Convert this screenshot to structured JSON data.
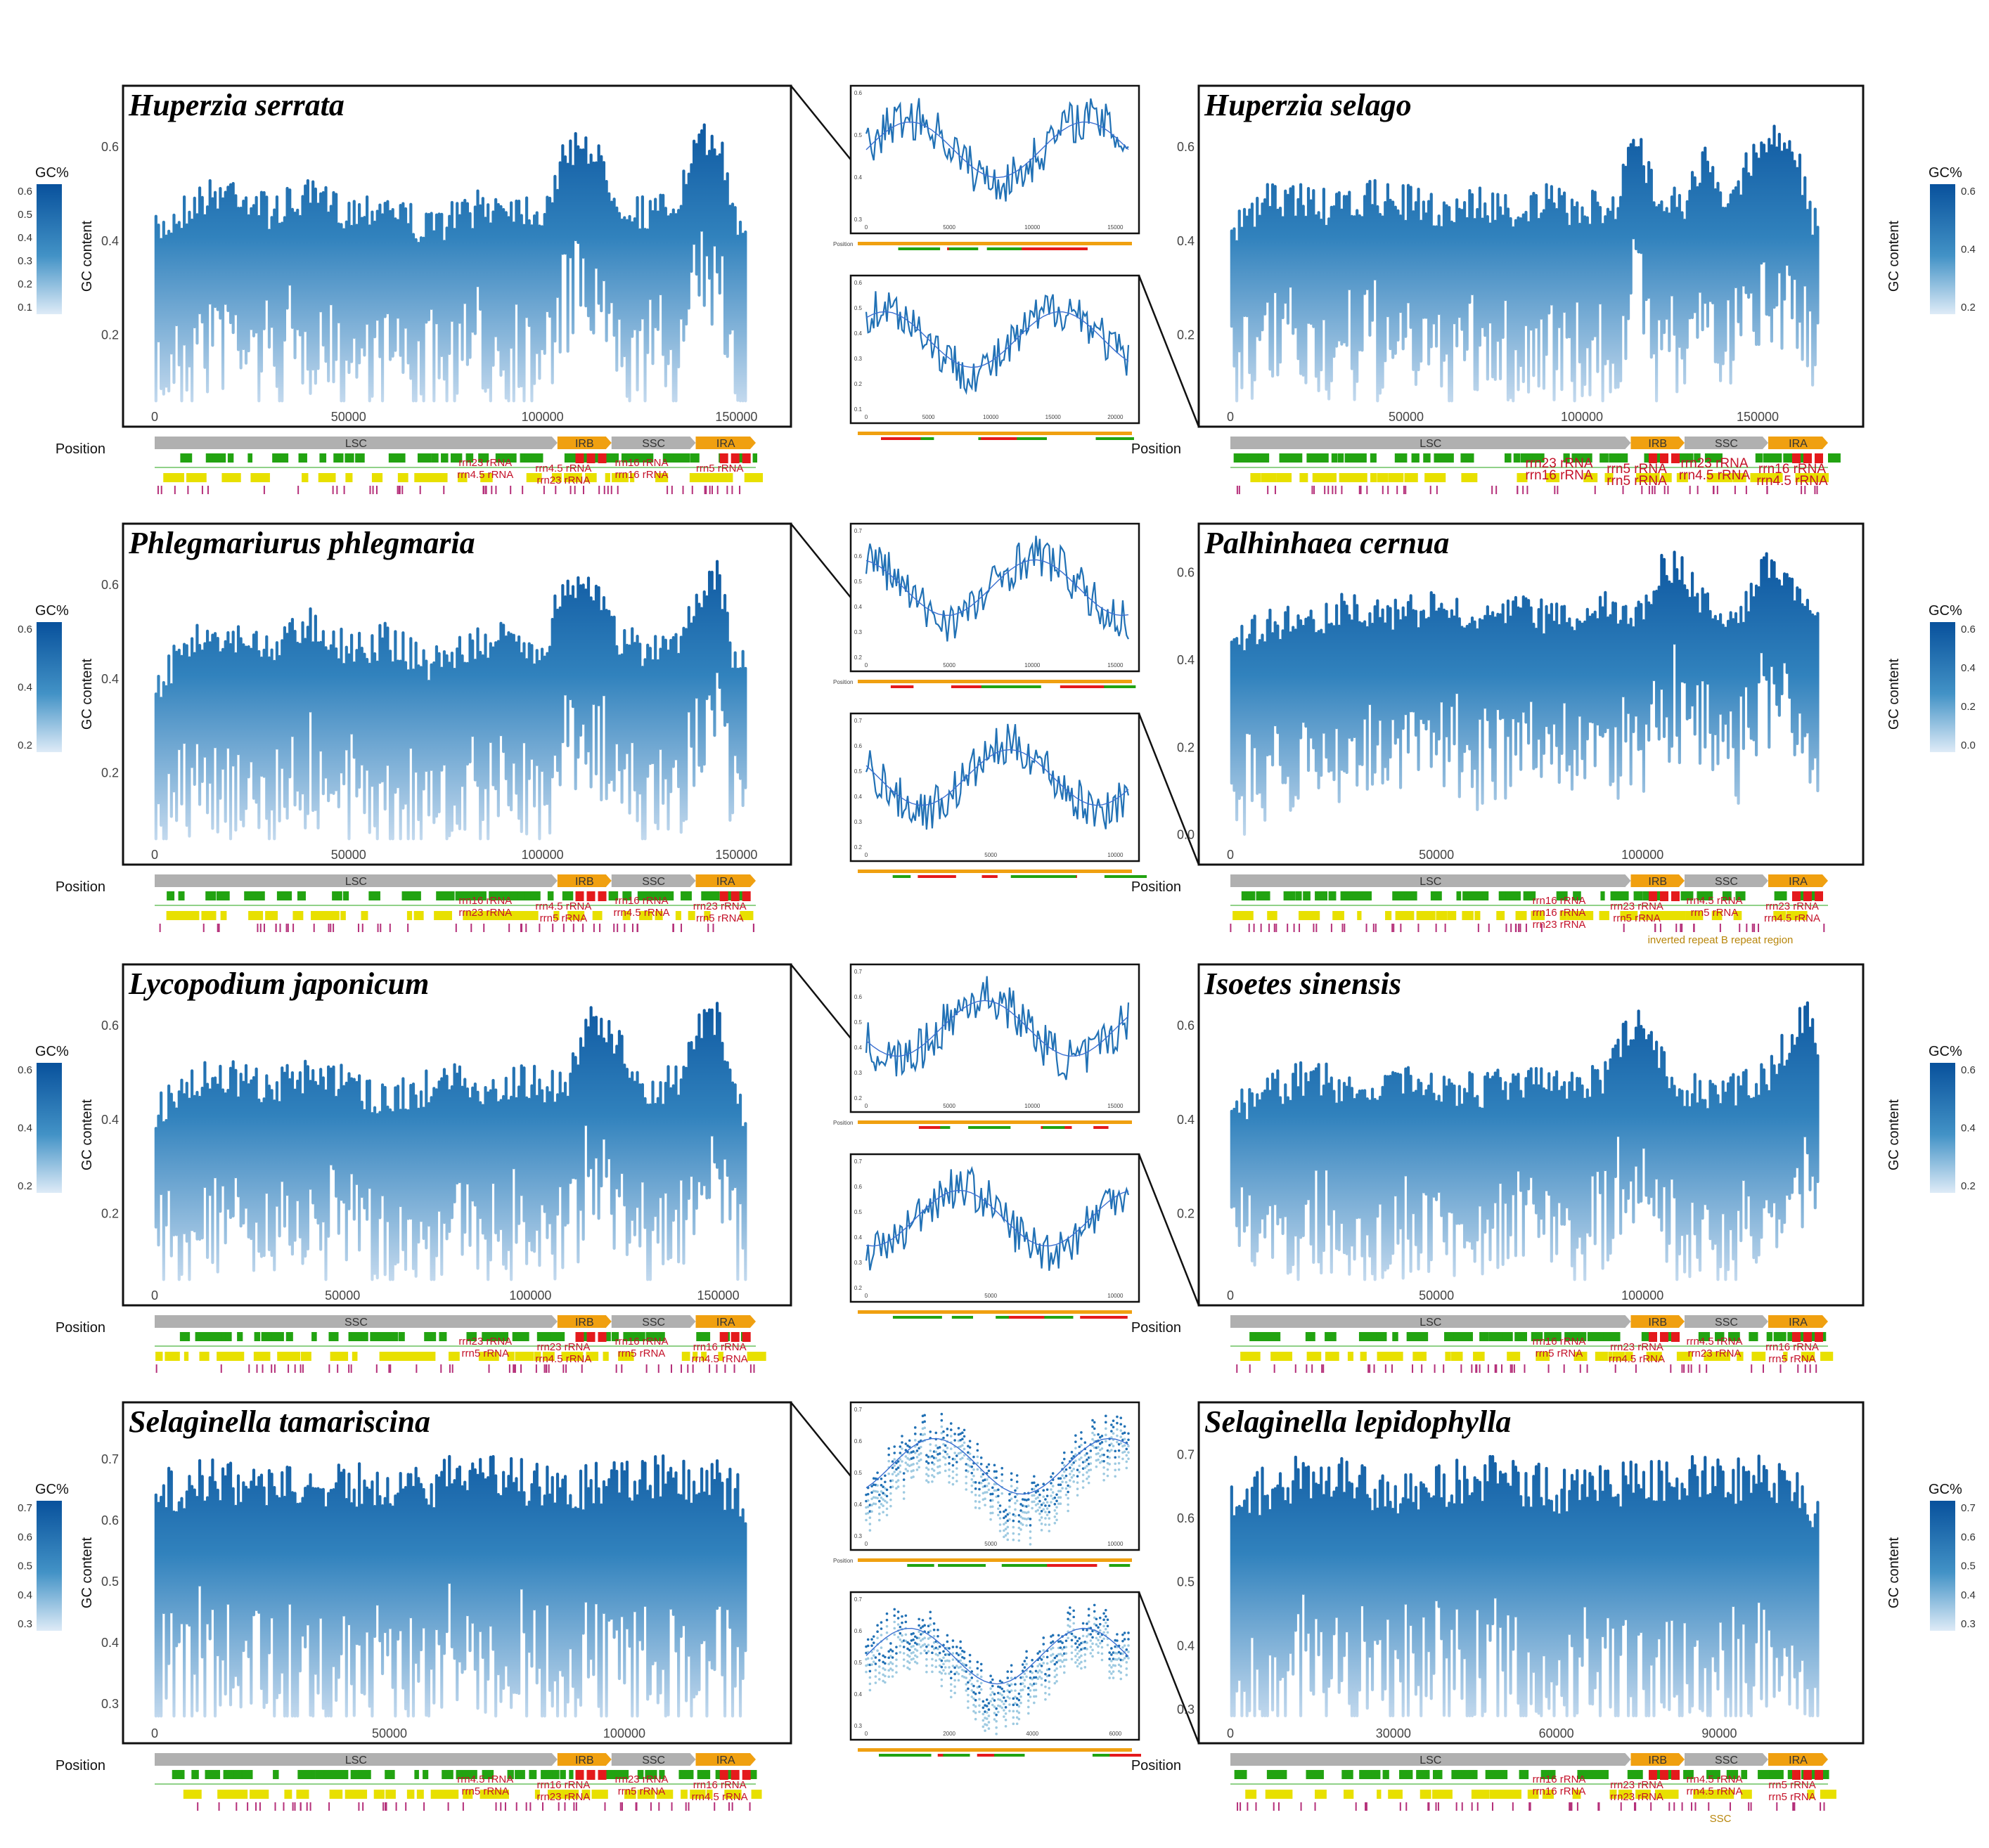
{
  "colors": {
    "dark": "#08519c",
    "mid": "#3182bd",
    "light": "#c6dbef",
    "gene_green": "#22a311",
    "gene_yellow": "#e8e000",
    "rrna_red": "#e41a1c",
    "repeat_magenta": "#b5307a",
    "region_grey": "#b0b0b0",
    "region_orange": "#f0a010"
  },
  "common": {
    "ylabel": "GC content",
    "xlabel": "Position",
    "legend_title": "GC%",
    "inset_xlabel": "Position"
  },
  "panels": [
    {
      "species": "Huperzia serrata",
      "yticks": [
        "0.2",
        "0.4",
        "0.6"
      ],
      "xticks": [
        "0",
        "50000",
        "100000",
        "150000"
      ],
      "legend": [
        "0.6",
        "0.5",
        "0.4",
        "0.3",
        "0.2",
        "0.1"
      ],
      "regions": [
        "LSC",
        "IRB",
        "SSC",
        "IRA"
      ],
      "rrna_labels": [
        "rrn23 rRNA",
        "rrn4.5 rRNA",
        "rrn16 rRNA",
        "rrn5 rRNA",
        "rrn4.5 rRNA",
        "rrn23 rRNA",
        "rrn16 rRNA"
      ],
      "notes": []
    },
    {
      "species": "Huperzia selago",
      "yticks": [
        "0.2",
        "0.4",
        "0.6"
      ],
      "xticks": [
        "0",
        "50000",
        "100000",
        "150000"
      ],
      "legend": [
        "0.6",
        "0.4",
        "0.2"
      ],
      "regions": [
        "LSC",
        "IRB",
        "SSC",
        "IRA"
      ],
      "rrna_labels": [
        "rrn23 rRNA",
        "rrn5 rRNA",
        "rrn23 rRNA",
        "rrn16 rRNA",
        "rrn16 rRNA",
        "rrn5 rRNA",
        "rrn4.5 rRNA",
        "rrn4.5 rRNA"
      ],
      "notes": []
    },
    {
      "species": "Phlegmariurus phlegmaria",
      "yticks": [
        "0.2",
        "0.4",
        "0.6"
      ],
      "xticks": [
        "0",
        "50000",
        "100000",
        "150000"
      ],
      "legend": [
        "0.6",
        "0.4",
        "0.2"
      ],
      "regions": [
        "LSC",
        "IRB",
        "SSC",
        "IRA"
      ],
      "rrna_labels": [
        "rrn16 rRNA",
        "rrn4.5 rRNA",
        "rrn16 rRNA",
        "rrn23 rRNA",
        "rrn23 rRNA",
        "rrn5 rRNA",
        "rrn4.5 rRNA",
        "rrn5 rRNA"
      ],
      "notes": []
    },
    {
      "species": "Palhinhaea cernua",
      "yticks": [
        "0.0",
        "0.2",
        "0.4",
        "0.6"
      ],
      "xticks": [
        "0",
        "50000",
        "100000"
      ],
      "legend": [
        "0.6",
        "0.4",
        "0.2",
        "0.0"
      ],
      "regions": [
        "LSC",
        "IRB",
        "SSC",
        "IRA"
      ],
      "rrna_labels": [
        "rrn16 rRNA",
        "rrn23 rRNA",
        "rrn4.5 rRNA",
        "rrn23 rRNA",
        "rrn16 rRNA",
        "rrn5 rRNA",
        "rrn5 rRNA",
        "rrn4.5 rRNA",
        "rrn23 rRNA"
      ],
      "notes": [
        "inverted repeat B repeat region"
      ]
    },
    {
      "species": "Lycopodium japonicum",
      "yticks": [
        "0.2",
        "0.4",
        "0.6"
      ],
      "xticks": [
        "0",
        "50000",
        "100000",
        "150000"
      ],
      "legend": [
        "0.6",
        "0.4",
        "0.2"
      ],
      "regions": [
        "SSC",
        "IRB",
        "SSC",
        "IRA"
      ],
      "rrna_labels": [
        "rrn23 rRNA",
        "rrn23 rRNA",
        "rrn16 rRNA",
        "rrn16 rRNA",
        "rrn5 rRNA",
        "rrn4.5 rRNA",
        "rrn5 rRNA",
        "rrn4.5 rRNA"
      ],
      "notes": []
    },
    {
      "species": "Isoetes sinensis",
      "yticks": [
        "0.2",
        "0.4",
        "0.6"
      ],
      "xticks": [
        "0",
        "50000",
        "100000"
      ],
      "legend": [
        "0.6",
        "0.4",
        "0.2"
      ],
      "regions": [
        "LSC",
        "IRB",
        "SSC",
        "IRA"
      ],
      "rrna_labels": [
        "rrn16 rRNA",
        "rrn23 rRNA",
        "rrn4.5 rRNA",
        "rrn16 rRNA",
        "rrn5 rRNA",
        "rrn4.5 rRNA",
        "rrn23 rRNA",
        "rrn5 rRNA"
      ],
      "notes": []
    },
    {
      "species": "Selaginella tamariscina",
      "yticks": [
        "0.3",
        "0.4",
        "0.5",
        "0.6",
        "0.7"
      ],
      "xticks": [
        "0",
        "50000",
        "100000"
      ],
      "legend": [
        "0.7",
        "0.6",
        "0.5",
        "0.4",
        "0.3"
      ],
      "regions": [
        "LSC",
        "IRB",
        "SSC",
        "IRA"
      ],
      "rrna_labels": [
        "rrn4.5 rRNA",
        "rrn16 rRNA",
        "rrn23 rRNA",
        "rrn16 rRNA",
        "rrn5 rRNA",
        "rrn23 rRNA",
        "rrn5 rRNA",
        "rrn4.5 rRNA"
      ],
      "notes": []
    },
    {
      "species": "Selaginella lepidophylla",
      "yticks": [
        "0.3",
        "0.4",
        "0.5",
        "0.6",
        "0.7"
      ],
      "xticks": [
        "0",
        "30000",
        "60000",
        "90000"
      ],
      "legend": [
        "0.7",
        "0.6",
        "0.5",
        "0.4",
        "0.3"
      ],
      "regions": [
        "LSC",
        "IRB",
        "SSC",
        "IRA"
      ],
      "rrna_labels": [
        "rrn16 rRNA",
        "rrn23 rRNA",
        "rrn4.5 rRNA",
        "rrn5 rRNA",
        "rrn16 rRNA",
        "rrn23 rRNA",
        "rrn4.5 rRNA",
        "rrn5 rRNA"
      ],
      "notes": [
        "SSC"
      ]
    }
  ],
  "insets": [
    {
      "xticks": [
        "0",
        "5000",
        "10000",
        "15000"
      ],
      "yticks": [
        "0.3",
        "0.4",
        "0.5",
        "0.6"
      ]
    },
    {
      "xticks": [
        "0",
        "5000",
        "10000",
        "15000",
        "20000"
      ],
      "yticks": [
        "0.1",
        "0.2",
        "0.3",
        "0.4",
        "0.5",
        "0.6"
      ]
    },
    {
      "xticks": [
        "0",
        "5000",
        "10000",
        "15000"
      ],
      "yticks": [
        "0.2",
        "0.3",
        "0.4",
        "0.5",
        "0.6",
        "0.7"
      ]
    },
    {
      "xticks": [
        "0",
        "5000",
        "10000"
      ],
      "yticks": [
        "0.2",
        "0.3",
        "0.4",
        "0.5",
        "0.6",
        "0.7"
      ]
    },
    {
      "xticks": [
        "0",
        "5000",
        "10000",
        "15000"
      ],
      "yticks": [
        "0.2",
        "0.3",
        "0.4",
        "0.5",
        "0.6",
        "0.7"
      ]
    },
    {
      "xticks": [
        "0",
        "5000",
        "10000"
      ],
      "yticks": [
        "0.2",
        "0.3",
        "0.4",
        "0.5",
        "0.6",
        "0.7"
      ]
    },
    {
      "xticks": [
        "0",
        "5000",
        "10000"
      ],
      "yticks": [
        "0.3",
        "0.4",
        "0.5",
        "0.6",
        "0.7"
      ]
    },
    {
      "xticks": [
        "0",
        "2000",
        "4000",
        "6000"
      ],
      "yticks": [
        "0.3",
        "0.4",
        "0.5",
        "0.6",
        "0.7"
      ]
    }
  ],
  "chart_data": [
    {
      "type": "scatter",
      "title": "Huperzia serrata",
      "xlabel": "Position",
      "ylabel": "GC content",
      "xlim": [
        0,
        155000
      ],
      "ylim": [
        0.05,
        0.7
      ],
      "profile_x": [
        0,
        10000,
        20000,
        30000,
        40000,
        50000,
        60000,
        70000,
        80000,
        90000,
        100000,
        105000,
        110000,
        115000,
        120000,
        125000,
        130000,
        135000,
        140000,
        145000,
        150000
      ],
      "profile_y_max": [
        0.45,
        0.52,
        0.55,
        0.5,
        0.53,
        0.5,
        0.52,
        0.46,
        0.5,
        0.52,
        0.5,
        0.6,
        0.66,
        0.6,
        0.52,
        0.5,
        0.5,
        0.52,
        0.64,
        0.66,
        0.48
      ]
    },
    {
      "type": "scatter",
      "title": "Huperzia selago",
      "xlabel": "Position",
      "ylabel": "GC content",
      "xlim": [
        0,
        170000
      ],
      "ylim": [
        0.05,
        0.7
      ],
      "profile_x": [
        0,
        10000,
        20000,
        30000,
        40000,
        50000,
        60000,
        70000,
        80000,
        90000,
        100000,
        110000,
        115000,
        120000,
        130000,
        135000,
        140000,
        150000,
        160000,
        165000
      ],
      "profile_y_max": [
        0.45,
        0.52,
        0.53,
        0.5,
        0.53,
        0.52,
        0.5,
        0.52,
        0.5,
        0.52,
        0.5,
        0.52,
        0.66,
        0.55,
        0.52,
        0.62,
        0.5,
        0.64,
        0.66,
        0.48
      ]
    },
    {
      "type": "scatter",
      "title": "Phlegmariurus phlegmaria",
      "xlabel": "Position",
      "ylabel": "GC content",
      "xlim": [
        0,
        155000
      ],
      "ylim": [
        0.05,
        0.7
      ],
      "profile_x": [
        0,
        10000,
        20000,
        30000,
        40000,
        50000,
        60000,
        70000,
        80000,
        90000,
        100000,
        105000,
        110000,
        115000,
        120000,
        125000,
        130000,
        135000,
        140000,
        145000,
        150000
      ],
      "profile_y_max": [
        0.42,
        0.52,
        0.53,
        0.5,
        0.56,
        0.5,
        0.52,
        0.47,
        0.5,
        0.52,
        0.5,
        0.62,
        0.66,
        0.6,
        0.52,
        0.5,
        0.5,
        0.52,
        0.62,
        0.66,
        0.46
      ]
    },
    {
      "type": "scatter",
      "title": "Palhinhaea cernua",
      "xlabel": "Position",
      "ylabel": "GC content",
      "xlim": [
        0,
        145000
      ],
      "ylim": [
        -0.02,
        0.68
      ],
      "profile_x": [
        0,
        10000,
        20000,
        30000,
        40000,
        50000,
        60000,
        70000,
        80000,
        90000,
        100000,
        105000,
        110000,
        115000,
        120000,
        125000,
        130000,
        135000,
        140000,
        145000
      ],
      "profile_y_max": [
        0.48,
        0.52,
        0.53,
        0.56,
        0.54,
        0.56,
        0.52,
        0.55,
        0.53,
        0.56,
        0.55,
        0.66,
        0.64,
        0.56,
        0.55,
        0.56,
        0.66,
        0.64,
        0.56,
        0.5
      ]
    },
    {
      "type": "scatter",
      "title": "Lycopodium japonicum",
      "xlabel": "Position",
      "ylabel": "GC content",
      "xlim": [
        0,
        160000
      ],
      "ylim": [
        0.05,
        0.7
      ],
      "profile_x": [
        0,
        10000,
        20000,
        30000,
        40000,
        50000,
        60000,
        70000,
        80000,
        90000,
        100000,
        110000,
        115000,
        120000,
        130000,
        140000,
        145000,
        150000,
        155000
      ],
      "profile_y_max": [
        0.45,
        0.52,
        0.53,
        0.5,
        0.53,
        0.52,
        0.48,
        0.5,
        0.52,
        0.5,
        0.52,
        0.5,
        0.66,
        0.64,
        0.5,
        0.52,
        0.64,
        0.66,
        0.46
      ]
    },
    {
      "type": "scatter",
      "title": "Isoetes sinensis",
      "xlabel": "Position",
      "ylabel": "GC content",
      "xlim": [
        0,
        145000
      ],
      "ylim": [
        0.05,
        0.7
      ],
      "profile_x": [
        0,
        10000,
        20000,
        30000,
        40000,
        50000,
        60000,
        70000,
        80000,
        90000,
        95000,
        100000,
        105000,
        110000,
        120000,
        130000,
        135000,
        140000,
        145000
      ],
      "profile_y_max": [
        0.45,
        0.5,
        0.53,
        0.5,
        0.52,
        0.5,
        0.5,
        0.52,
        0.5,
        0.52,
        0.6,
        0.66,
        0.55,
        0.5,
        0.5,
        0.52,
        0.6,
        0.66,
        0.5
      ]
    },
    {
      "type": "scatter",
      "title": "Selaginella tamariscina",
      "xlabel": "Position",
      "ylabel": "GC content",
      "xlim": [
        0,
        128000
      ],
      "ylim": [
        0.27,
        0.77
      ],
      "profile_x": [
        0,
        10000,
        20000,
        30000,
        40000,
        50000,
        60000,
        70000,
        80000,
        90000,
        100000,
        110000,
        120000,
        128000
      ],
      "profile_y_max": [
        0.68,
        0.7,
        0.7,
        0.69,
        0.7,
        0.68,
        0.7,
        0.72,
        0.7,
        0.69,
        0.7,
        0.71,
        0.7,
        0.66
      ]
    },
    {
      "type": "scatter",
      "title": "Selaginella lepidophylla",
      "xlabel": "Position",
      "ylabel": "GC content",
      "xlim": [
        0,
        110000
      ],
      "ylim": [
        0.28,
        0.76
      ],
      "profile_x": [
        0,
        10000,
        20000,
        30000,
        40000,
        50000,
        60000,
        70000,
        80000,
        90000,
        100000,
        110000
      ],
      "profile_y_max": [
        0.66,
        0.7,
        0.7,
        0.68,
        0.69,
        0.7,
        0.68,
        0.69,
        0.7,
        0.7,
        0.7,
        0.65
      ]
    }
  ]
}
